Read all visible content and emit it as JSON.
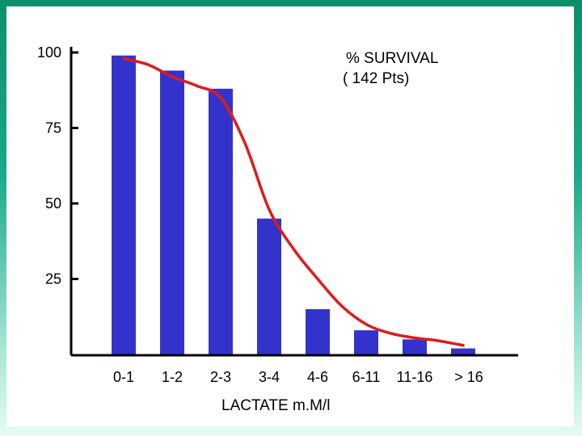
{
  "colors": {
    "bar": "#3333cc",
    "curve": "#e01a1a",
    "axis": "#000000",
    "frame_gradient": [
      "#0b8f6a",
      "#e6fbf5"
    ]
  },
  "chart_data": {
    "type": "bar",
    "title": "",
    "xlabel": "LACTATE  m.M/l",
    "ylabel": "",
    "legend": [
      "% SURVIVAL",
      "( 142 Pts)"
    ],
    "categories": [
      "0-1",
      "1-2",
      "2-3",
      "3-4",
      "4-6",
      "6-11",
      "11-16",
      "> 16"
    ],
    "values": [
      99,
      94,
      88,
      45,
      15,
      8,
      5,
      2
    ],
    "yticks": [
      25,
      50,
      75,
      100
    ],
    "ylim": [
      0,
      100
    ],
    "curve": [
      [
        0,
        98
      ],
      [
        0.5,
        96
      ],
      [
        1,
        92
      ],
      [
        1.5,
        89
      ],
      [
        2,
        85
      ],
      [
        2.5,
        70
      ],
      [
        3,
        48
      ],
      [
        3.5,
        35
      ],
      [
        4,
        25
      ],
      [
        4.5,
        16
      ],
      [
        5,
        10
      ],
      [
        5.5,
        7
      ],
      [
        6,
        5.5
      ],
      [
        6.5,
        4.5
      ],
      [
        7,
        3
      ]
    ],
    "grid": false
  }
}
